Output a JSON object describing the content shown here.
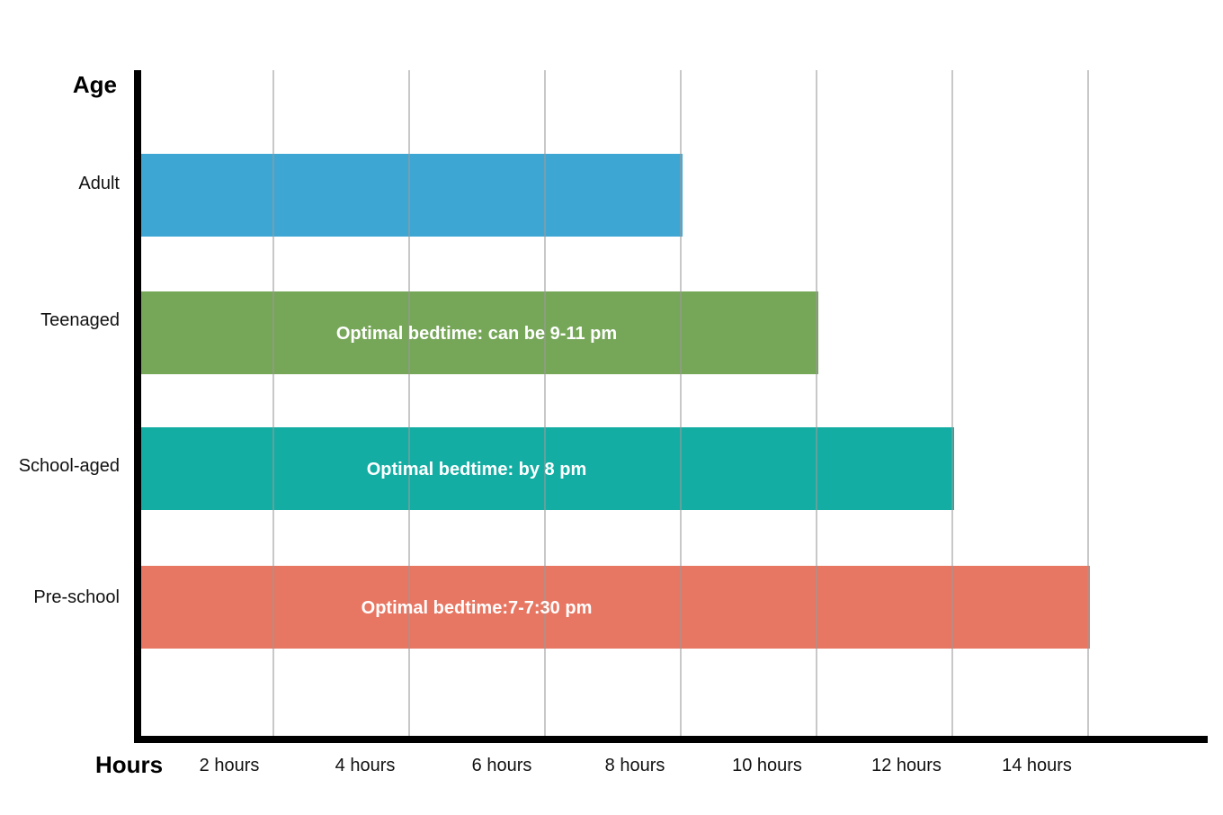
{
  "chart_data": {
    "type": "bar",
    "orientation": "horizontal",
    "categories": [
      "Adult",
      "Teenaged",
      "School-aged",
      "Pre-school"
    ],
    "values": [
      8,
      10,
      12,
      14
    ],
    "annotations": [
      "",
      "Optimal bedtime: can be 9-11 pm",
      "Optimal bedtime: by 8 pm",
      "Optimal bedtime:7-7:30 pm"
    ],
    "colors": [
      "#2e9ecf",
      "#6a9e4a",
      "#00a69b",
      "#e56a55"
    ],
    "x_ticks": [
      2,
      4,
      6,
      8,
      10,
      12,
      14
    ],
    "x_tick_labels": [
      "2 hours",
      "4 hours",
      "6 hours",
      "8 hours",
      "10 hours",
      "12 hours",
      "14 hours"
    ],
    "xlabel": "Hours",
    "ylabel": "Age",
    "xlim": [
      0,
      16
    ],
    "grid": "vertical",
    "legend": "none"
  }
}
